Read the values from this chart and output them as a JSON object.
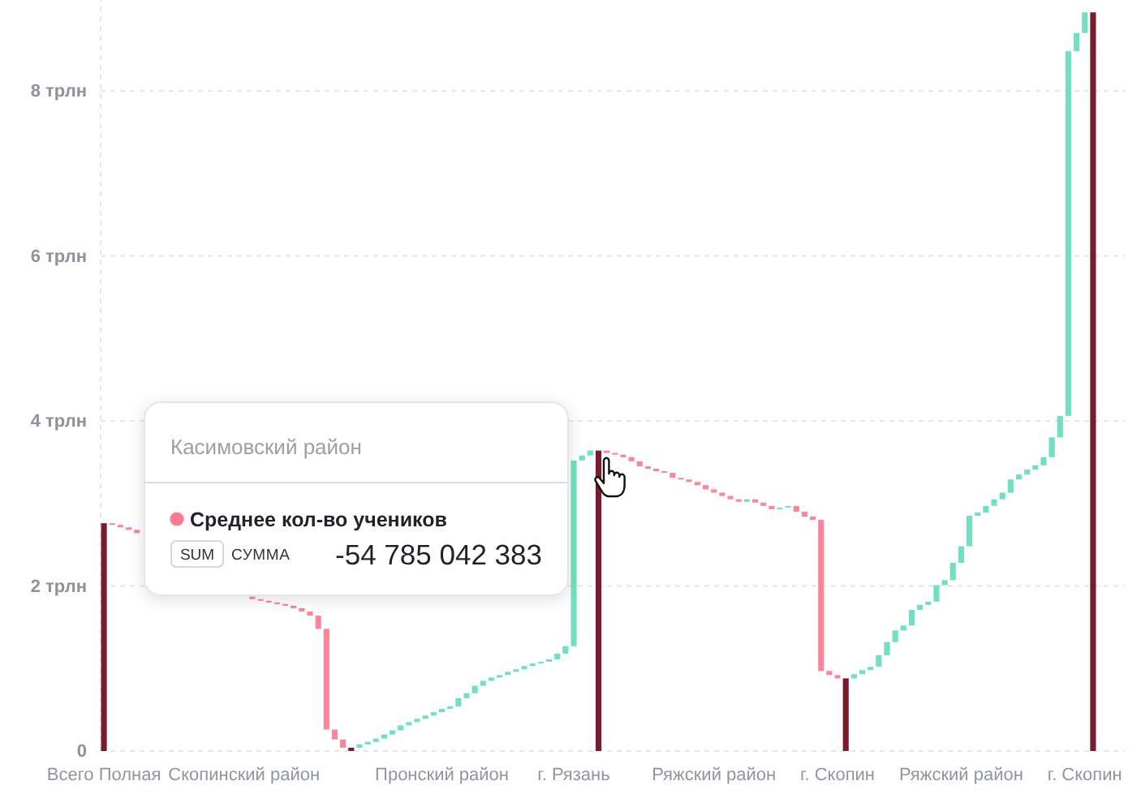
{
  "chart_data": {
    "type": "bar",
    "categories": [
      "Всего Полная",
      null,
      null,
      null,
      null,
      null,
      null,
      null,
      null,
      null,
      null,
      null,
      null,
      null,
      null,
      null,
      null,
      "Скопинский район",
      null,
      null,
      null,
      null,
      null,
      null,
      null,
      null,
      null,
      null,
      null,
      null,
      null,
      null,
      null,
      null,
      null,
      null,
      null,
      null,
      null,
      null,
      null,
      "Пронский район",
      null,
      null,
      null,
      null,
      null,
      null,
      null,
      null,
      null,
      null,
      null,
      null,
      null,
      null,
      null,
      "г. Рязань",
      null,
      null,
      null,
      null,
      null,
      null,
      null,
      null,
      null,
      null,
      null,
      null,
      null,
      null,
      null,
      null,
      "Ряжский район",
      null,
      null,
      null,
      null,
      null,
      null,
      null,
      null,
      null,
      null,
      null,
      null,
      null,
      null,
      "г. Скопин",
      null,
      null,
      null,
      null,
      null,
      null,
      null,
      null,
      null,
      null,
      null,
      null,
      null,
      null,
      "Ряжский район",
      null,
      null,
      null,
      null,
      null,
      null,
      null,
      null,
      null,
      null,
      null,
      null,
      null,
      null,
      "г. Скопин",
      null
    ],
    "values": [
      2.76,
      -0.02,
      -0.03,
      -0.03,
      -0.04,
      null,
      null,
      null,
      null,
      null,
      null,
      null,
      null,
      null,
      null,
      null,
      null,
      null,
      -0.03,
      -0.02,
      -0.02,
      -0.02,
      -0.02,
      -0.03,
      -0.04,
      -0.05,
      -0.16,
      -1.22,
      -0.12,
      -0.1,
      0.04,
      0.04,
      0.03,
      0.04,
      0.05,
      0.05,
      0.06,
      0.04,
      0.04,
      0.04,
      0.04,
      0.04,
      0.03,
      0.1,
      0.06,
      0.09,
      0.06,
      0.04,
      0.03,
      0.04,
      0.03,
      0.04,
      0.03,
      0.02,
      0.03,
      0.07,
      0.09,
      2.25,
      0.06,
      0.06,
      3.64,
      -0.03,
      -0.02,
      -0.03,
      -0.05,
      -0.06,
      -0.03,
      -0.03,
      -0.02,
      -0.06,
      -0.02,
      -0.03,
      -0.04,
      -0.05,
      -0.04,
      -0.04,
      -0.04,
      -0.03,
      0.03,
      -0.04,
      -0.04,
      -0.04,
      0.02,
      0.02,
      -0.07,
      -0.06,
      -0.04,
      -1.83,
      -0.05,
      -0.04,
      0.88,
      0.05,
      0.05,
      0.04,
      0.14,
      0.16,
      0.14,
      0.06,
      0.19,
      0.06,
      0.04,
      0.2,
      0.06,
      0.21,
      0.2,
      0.37,
      0.04,
      0.08,
      0.08,
      0.08,
      0.16,
      0.06,
      0.06,
      0.05,
      0.1,
      0.24,
      0.26,
      4.42,
      0.22,
      0.25,
      8.95
    ],
    "base": [
      0,
      2.76,
      2.74,
      2.71,
      2.68,
      null,
      null,
      null,
      null,
      null,
      null,
      null,
      null,
      null,
      null,
      null,
      null,
      null,
      1.87,
      1.84,
      1.82,
      1.8,
      1.78,
      1.76,
      1.73,
      1.69,
      1.64,
      1.48,
      0.26,
      0.14,
      0,
      0.04,
      0.08,
      0.11,
      0.15,
      0.2,
      0.25,
      0.31,
      0.35,
      0.39,
      0.43,
      0.47,
      0.51,
      0.54,
      0.64,
      0.7,
      0.79,
      0.85,
      0.89,
      0.92,
      0.96,
      0.99,
      1.03,
      1.06,
      1.08,
      1.11,
      1.18,
      1.27,
      3.52,
      3.58,
      0,
      3.64,
      3.61,
      3.59,
      3.56,
      3.51,
      3.45,
      3.42,
      3.39,
      3.37,
      3.31,
      3.29,
      3.26,
      3.22,
      3.17,
      3.13,
      3.09,
      3.05,
      3.02,
      3.05,
      3.01,
      2.97,
      2.93,
      2.95,
      2.97,
      2.9,
      2.84,
      2.8,
      0.97,
      0.92,
      0,
      0.88,
      0.93,
      0.98,
      1.02,
      1.16,
      1.32,
      1.46,
      1.52,
      1.71,
      1.77,
      1.81,
      2.01,
      2.07,
      2.28,
      2.48,
      2.85,
      2.89,
      2.97,
      3.05,
      3.13,
      3.29,
      3.35,
      3.41,
      3.46,
      3.56,
      3.8,
      4.06,
      8.48,
      8.7,
      0
    ],
    "colors": [
      "#7a1b2d",
      "#ff8498",
      "#ff8498",
      "#ff8498",
      "#ff8498",
      null,
      null,
      null,
      null,
      null,
      null,
      null,
      null,
      null,
      null,
      null,
      null,
      null,
      "#ff8498",
      "#ff8498",
      "#ff8498",
      "#ff8498",
      "#ff8498",
      "#ff8498",
      "#ff8498",
      "#ff8498",
      "#ff8498",
      "#ff8498",
      "#ff8498",
      "#ff8498",
      "#7a1b2d",
      "#6fe1c2",
      "#6fe1c2",
      "#6fe1c2",
      "#6fe1c2",
      "#6fe1c2",
      "#6fe1c2",
      "#6fe1c2",
      "#6fe1c2",
      "#6fe1c2",
      "#6fe1c2",
      "#6fe1c2",
      "#6fe1c2",
      "#6fe1c2",
      "#6fe1c2",
      "#6fe1c2",
      "#6fe1c2",
      "#6fe1c2",
      "#6fe1c2",
      "#6fe1c2",
      "#6fe1c2",
      "#6fe1c2",
      "#6fe1c2",
      "#6fe1c2",
      "#6fe1c2",
      "#6fe1c2",
      "#6fe1c2",
      "#6fe1c2",
      "#6fe1c2",
      "#6fe1c2",
      "#7a1b2d",
      "#ff8498",
      "#ff8498",
      "#ff8498",
      "#ff8498",
      "#ff8498",
      "#ff8498",
      "#ff8498",
      "#ff8498",
      "#ff8498",
      "#ff8498",
      "#ff8498",
      "#ff8498",
      "#ff8498",
      "#ff8498",
      "#ff8498",
      "#ff8498",
      "#ff8498",
      "#6fe1c2",
      "#ff8498",
      "#ff8498",
      "#ff8498",
      "#6fe1c2",
      "#6fe1c2",
      "#ff8498",
      "#ff8498",
      "#ff8498",
      "#ff8498",
      "#ff8498",
      "#ff8498",
      "#7a1b2d",
      "#6fe1c2",
      "#6fe1c2",
      "#6fe1c2",
      "#6fe1c2",
      "#6fe1c2",
      "#6fe1c2",
      "#6fe1c2",
      "#6fe1c2",
      "#6fe1c2",
      "#6fe1c2",
      "#6fe1c2",
      "#6fe1c2",
      "#6fe1c2",
      "#6fe1c2",
      "#6fe1c2",
      "#6fe1c2",
      "#6fe1c2",
      "#6fe1c2",
      "#6fe1c2",
      "#6fe1c2",
      "#6fe1c2",
      "#6fe1c2",
      "#6fe1c2",
      "#6fe1c2",
      "#6fe1c2",
      "#6fe1c2",
      "#6fe1c2",
      "#6fe1c2",
      "#6fe1c2",
      "#7a1b2d"
    ],
    "ylim": [
      0,
      9.1
    ],
    "yticks": [
      0,
      {
        "value": 2,
        "label": "2 трлн"
      },
      {
        "value": 4,
        "label": "4 трлн"
      },
      {
        "value": 6,
        "label": "6 трлн"
      },
      {
        "value": 8,
        "label": "8 трлн"
      }
    ],
    "grid": "y",
    "annotations": [
      "Касимовский район",
      "Среднее кол-во учеников",
      "SUM",
      "СУММА",
      "-54 785 042 383"
    ]
  }
}
